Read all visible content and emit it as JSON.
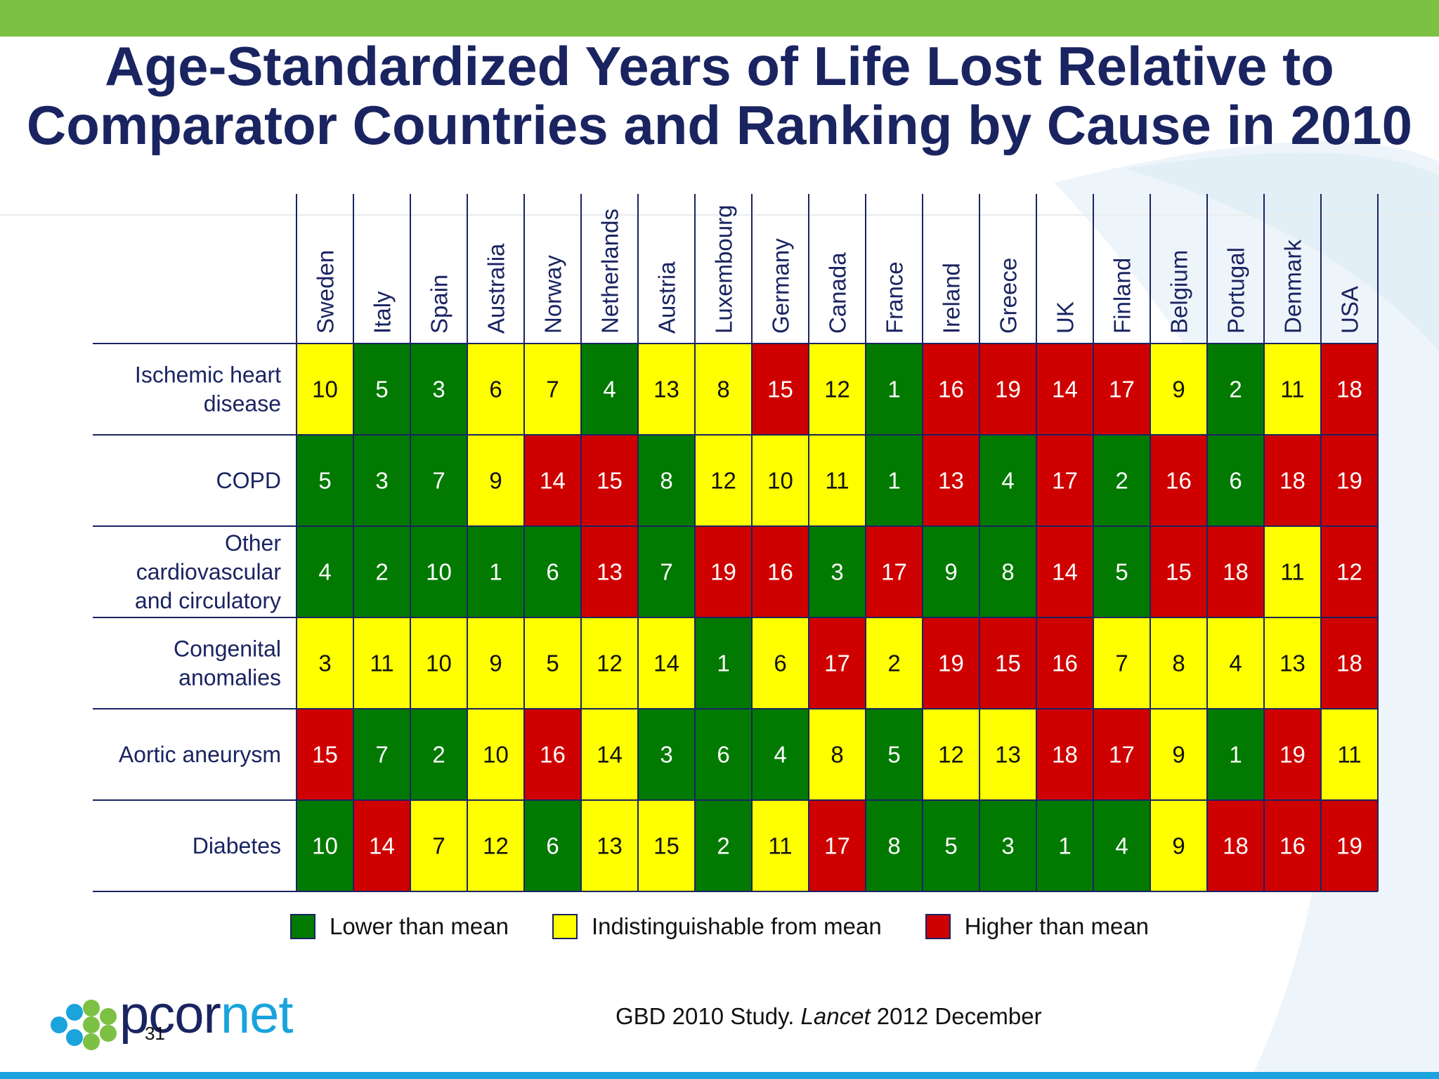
{
  "title_line1": "Age-Standardized Years of Life Lost Relative to",
  "title_line2": "Comparator Countries and Ranking by Cause in 2010",
  "colors": {
    "lower": "#027a02",
    "indistinguishable": "#ffff00",
    "higher": "#cf0000",
    "title": "#1a2461",
    "top_bar": "#7cc144",
    "bottom_bar": "#1aa3dd"
  },
  "legend": {
    "lower": "Lower than mean",
    "indistinguishable": "Indistinguishable from mean",
    "higher": "Higher than mean"
  },
  "source": {
    "prefix": "GBD 2010 Study. ",
    "journal": "Lancet",
    "suffix": " 2012 December"
  },
  "logo": {
    "part1": "pcor",
    "part2": "net"
  },
  "page_number": "31",
  "chart_data": {
    "type": "table",
    "columns": [
      "Sweden",
      "Italy",
      "Spain",
      "Australia",
      "Norway",
      "Netherlands",
      "Austria",
      "Luxembourg",
      "Germany",
      "Canada",
      "France",
      "Ireland",
      "Greece",
      "UK",
      "Finland",
      "Belgium",
      "Portugal",
      "Denmark",
      "USA"
    ],
    "rows": [
      {
        "label_lines": [
          "Ischemic heart",
          "disease"
        ],
        "ranks": [
          10,
          5,
          3,
          6,
          7,
          4,
          13,
          8,
          15,
          12,
          1,
          16,
          19,
          14,
          17,
          9,
          2,
          11,
          18
        ],
        "status": [
          "indistinguishable",
          "lower",
          "lower",
          "indistinguishable",
          "indistinguishable",
          "lower",
          "indistinguishable",
          "indistinguishable",
          "higher",
          "indistinguishable",
          "lower",
          "higher",
          "higher",
          "higher",
          "higher",
          "indistinguishable",
          "lower",
          "indistinguishable",
          "higher"
        ]
      },
      {
        "label_lines": [
          "COPD"
        ],
        "ranks": [
          5,
          3,
          7,
          9,
          14,
          15,
          8,
          12,
          10,
          11,
          1,
          13,
          4,
          17,
          2,
          16,
          6,
          18,
          19
        ],
        "status": [
          "lower",
          "lower",
          "lower",
          "indistinguishable",
          "higher",
          "higher",
          "lower",
          "indistinguishable",
          "indistinguishable",
          "indistinguishable",
          "lower",
          "higher",
          "lower",
          "higher",
          "lower",
          "higher",
          "lower",
          "higher",
          "higher"
        ]
      },
      {
        "label_lines": [
          "Other",
          "cardiovascular",
          "and circulatory"
        ],
        "ranks": [
          4,
          2,
          10,
          1,
          6,
          13,
          7,
          19,
          16,
          3,
          17,
          9,
          8,
          14,
          5,
          15,
          18,
          11,
          12
        ],
        "status": [
          "lower",
          "lower",
          "lower",
          "lower",
          "lower",
          "higher",
          "lower",
          "higher",
          "higher",
          "lower",
          "higher",
          "lower",
          "lower",
          "higher",
          "lower",
          "higher",
          "higher",
          "indistinguishable",
          "higher"
        ]
      },
      {
        "label_lines": [
          "Congenital",
          "anomalies"
        ],
        "ranks": [
          3,
          11,
          10,
          9,
          5,
          12,
          14,
          1,
          6,
          17,
          2,
          19,
          15,
          16,
          7,
          8,
          4,
          13,
          18
        ],
        "status": [
          "indistinguishable",
          "indistinguishable",
          "indistinguishable",
          "indistinguishable",
          "indistinguishable",
          "indistinguishable",
          "indistinguishable",
          "lower",
          "indistinguishable",
          "higher",
          "indistinguishable",
          "higher",
          "higher",
          "higher",
          "indistinguishable",
          "indistinguishable",
          "indistinguishable",
          "indistinguishable",
          "higher"
        ]
      },
      {
        "label_lines": [
          "Aortic aneurysm"
        ],
        "ranks": [
          15,
          7,
          2,
          10,
          16,
          14,
          3,
          6,
          4,
          8,
          5,
          12,
          13,
          18,
          17,
          9,
          1,
          19,
          11
        ],
        "status": [
          "higher",
          "lower",
          "lower",
          "indistinguishable",
          "higher",
          "indistinguishable",
          "lower",
          "lower",
          "lower",
          "indistinguishable",
          "lower",
          "indistinguishable",
          "indistinguishable",
          "higher",
          "higher",
          "indistinguishable",
          "lower",
          "higher",
          "indistinguishable"
        ]
      },
      {
        "label_lines": [
          "Diabetes"
        ],
        "ranks": [
          10,
          14,
          7,
          12,
          6,
          13,
          15,
          2,
          11,
          17,
          8,
          5,
          3,
          1,
          4,
          9,
          18,
          16,
          19
        ],
        "status": [
          "lower",
          "higher",
          "indistinguishable",
          "indistinguishable",
          "lower",
          "indistinguishable",
          "indistinguishable",
          "lower",
          "indistinguishable",
          "higher",
          "lower",
          "lower",
          "lower",
          "lower",
          "lower",
          "indistinguishable",
          "higher",
          "higher",
          "higher"
        ]
      }
    ]
  }
}
